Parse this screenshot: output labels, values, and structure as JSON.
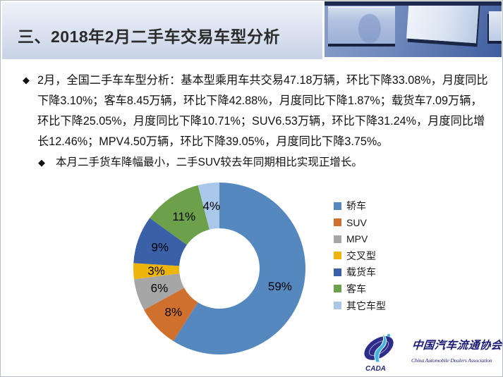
{
  "header": {
    "title": "三、2018年2月二手车交易车型分析"
  },
  "bullets": [
    {
      "marker": "◆",
      "text": "2月，全国二手车车型分析：基本型乘用车共交易47.18万辆，环比下降33.08%，月度同比下降3.10%；客车8.45万辆，环比下降42.88%，月度同比下降1.87%；载货车7.09万辆，环比下降25.05%，月度同比下降10.71%；SUV6.53万辆，环比下降31.24%，月度同比增长12.46%；MPV4.50万辆，环比下降39.05%，月度同比下降3.75%。"
    },
    {
      "marker": "◆",
      "text": "本月二手货车降幅最小，二手SUV较去年同期相比实现正增长。"
    }
  ],
  "chart_data": {
    "type": "pie",
    "subtype": "donut",
    "categories": [
      "轿车",
      "SUV",
      "MPV",
      "交叉型",
      "载货车",
      "客车",
      "其它车型"
    ],
    "values": [
      59,
      8,
      6,
      3,
      9,
      11,
      4
    ],
    "labels": [
      "59%",
      "8%",
      "6%",
      "3%",
      "9%",
      "11%",
      "4%"
    ],
    "colors": [
      "#5588BF",
      "#D0702F",
      "#A6A6A6",
      "#EDB409",
      "#3A60A8",
      "#6DA04A",
      "#A9C7E9"
    ],
    "legend_position": "right",
    "start_angle_deg": 0,
    "direction": "clockwise",
    "inner_radius_ratio": 0.47
  },
  "logo": {
    "emblem_text": "CADA",
    "name_cn": "中国汽车流通协会",
    "name_en": "China Automobile Dealers Association"
  }
}
